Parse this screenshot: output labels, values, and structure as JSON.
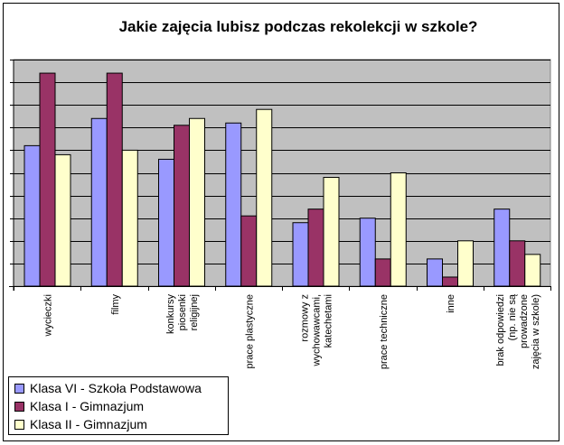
{
  "chart_data": {
    "type": "bar",
    "title": "Jakie zajęcia lubisz podczas rekolekcji w szkole?",
    "categories": [
      [
        "wycieczki"
      ],
      [
        "filmy"
      ],
      [
        "konkursy",
        "piosenki",
        "religijnej"
      ],
      [
        "prace plastyczne"
      ],
      [
        "rozmowy z",
        "wychowawcami,",
        "katechetami"
      ],
      [
        "prace techniczne"
      ],
      [
        "inne"
      ],
      [
        "brak odpowiedzi",
        "(np. nie są",
        "prowadzone",
        "zajęcia w szkole)"
      ]
    ],
    "ylim": [
      0,
      10
    ],
    "y_gridlines_every": 1,
    "y_tick_labels_shown": false,
    "grid": true,
    "legend_position": "bottom-left",
    "plot_background": "#C0C0C0",
    "series": [
      {
        "name": "Klasa VI - Szkoła Podstawowa",
        "color": "#9999FF",
        "values": [
          6.2,
          7.4,
          5.6,
          7.2,
          2.8,
          3.0,
          1.2,
          3.4
        ]
      },
      {
        "name": "Klasa I - Gimnazjum",
        "color": "#993366",
        "values": [
          9.4,
          9.4,
          7.1,
          3.1,
          3.4,
          1.2,
          0.4,
          2.0
        ]
      },
      {
        "name": "Klasa II - Gimnazjum",
        "color": "#FFFFCC",
        "values": [
          5.8,
          6.0,
          7.4,
          7.8,
          4.8,
          5.0,
          2.0,
          1.4
        ]
      }
    ]
  }
}
